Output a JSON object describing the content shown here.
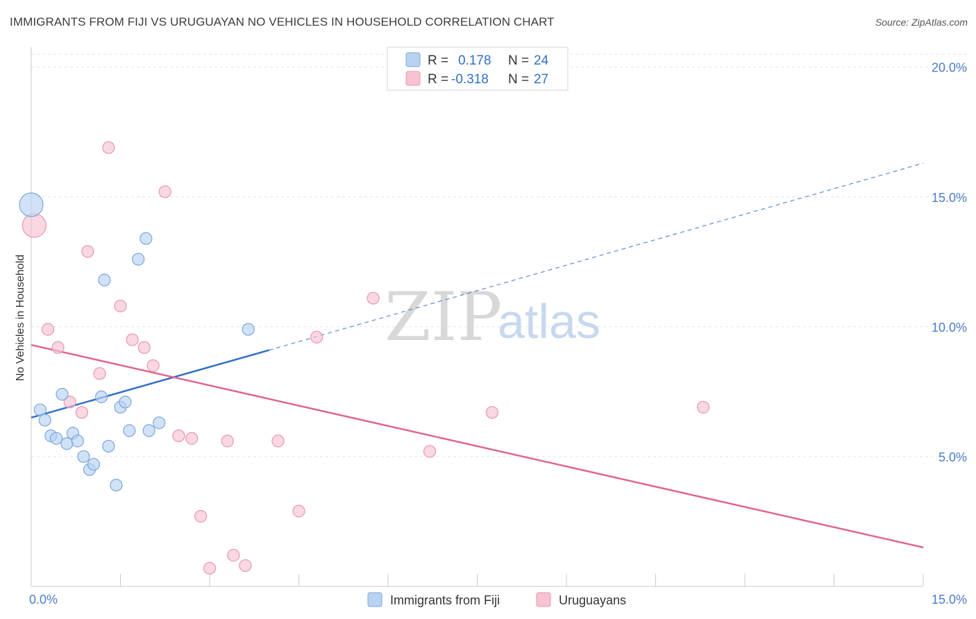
{
  "header": {
    "title": "IMMIGRANTS FROM FIJI VS URUGUAYAN NO VEHICLES IN HOUSEHOLD CORRELATION CHART",
    "source": "Source: ZipAtlas.com"
  },
  "watermark": {
    "zip": "ZIP",
    "atlas": "atlas"
  },
  "legend": {
    "rows": [
      {
        "r_label": "R =",
        "r_value": "0.178",
        "n_label": "N =",
        "n_value": "24"
      },
      {
        "r_label": "R =",
        "r_value": "-0.318",
        "n_label": "N =",
        "n_value": "27"
      }
    ]
  },
  "chart_data": {
    "type": "scatter",
    "title": "IMMIGRANTS FROM FIJI VS URUGUAYAN NO VEHICLES IN HOUSEHOLD CORRELATION CHART",
    "xlabel": "",
    "ylabel": "No Vehicles in Household",
    "xlim": [
      0,
      15
    ],
    "ylim": [
      0,
      20.5
    ],
    "x_tick_labels": [
      "0.0%",
      "15.0%"
    ],
    "y_ticks": [
      5,
      10,
      15,
      20
    ],
    "y_tick_labels": [
      "5.0%",
      "10.0%",
      "15.0%",
      "20.0%"
    ],
    "grid": true,
    "legend_position": "top-center",
    "colors": {
      "fiji_fill": "#b8d2f2",
      "fiji_stroke": "#7aa6dc",
      "fiji_line": "#2f6fc9",
      "uru_fill": "#f7c3d3",
      "uru_stroke": "#e994b0",
      "uru_line": "#e0648f"
    },
    "series": [
      {
        "name": "Immigrants from Fiji",
        "points": [
          {
            "x": 0.0,
            "y": 14.7,
            "large": true
          },
          {
            "x": 0.15,
            "y": 6.8
          },
          {
            "x": 0.23,
            "y": 6.4
          },
          {
            "x": 0.33,
            "y": 5.8
          },
          {
            "x": 0.42,
            "y": 5.7
          },
          {
            "x": 0.52,
            "y": 7.4
          },
          {
            "x": 0.6,
            "y": 5.5
          },
          {
            "x": 0.7,
            "y": 5.9
          },
          {
            "x": 0.78,
            "y": 5.6
          },
          {
            "x": 0.88,
            "y": 5.0
          },
          {
            "x": 0.98,
            "y": 4.5
          },
          {
            "x": 1.05,
            "y": 4.7
          },
          {
            "x": 1.18,
            "y": 7.3
          },
          {
            "x": 1.23,
            "y": 11.8
          },
          {
            "x": 1.3,
            "y": 5.4
          },
          {
            "x": 1.43,
            "y": 3.9
          },
          {
            "x": 1.5,
            "y": 6.9
          },
          {
            "x": 1.58,
            "y": 7.1
          },
          {
            "x": 1.65,
            "y": 6.0
          },
          {
            "x": 1.8,
            "y": 12.6
          },
          {
            "x": 1.93,
            "y": 13.4
          },
          {
            "x": 1.98,
            "y": 6.0
          },
          {
            "x": 2.15,
            "y": 6.3
          },
          {
            "x": 3.65,
            "y": 9.9
          }
        ],
        "trend": {
          "x0": 0,
          "y0": 6.5,
          "x1": 4.0,
          "y1": 9.1,
          "dash_to_x": 15,
          "dash_to_y": 16.3
        }
      },
      {
        "name": "Uruguayans",
        "points": [
          {
            "x": 0.05,
            "y": 13.9,
            "large": true
          },
          {
            "x": 0.28,
            "y": 9.9
          },
          {
            "x": 0.45,
            "y": 9.2
          },
          {
            "x": 0.65,
            "y": 7.1
          },
          {
            "x": 0.85,
            "y": 6.7
          },
          {
            "x": 0.95,
            "y": 12.9
          },
          {
            "x": 1.15,
            "y": 8.2
          },
          {
            "x": 1.3,
            "y": 16.9
          },
          {
            "x": 1.5,
            "y": 10.8
          },
          {
            "x": 1.7,
            "y": 9.5
          },
          {
            "x": 1.9,
            "y": 9.2
          },
          {
            "x": 2.05,
            "y": 8.5
          },
          {
            "x": 2.25,
            "y": 15.2
          },
          {
            "x": 2.48,
            "y": 5.8
          },
          {
            "x": 2.7,
            "y": 5.7
          },
          {
            "x": 2.85,
            "y": 2.7
          },
          {
            "x": 3.0,
            "y": 0.7
          },
          {
            "x": 3.3,
            "y": 5.6
          },
          {
            "x": 3.4,
            "y": 1.2
          },
          {
            "x": 3.6,
            "y": 0.8
          },
          {
            "x": 4.15,
            "y": 5.6
          },
          {
            "x": 4.5,
            "y": 2.9
          },
          {
            "x": 4.8,
            "y": 9.6
          },
          {
            "x": 5.75,
            "y": 11.1
          },
          {
            "x": 6.7,
            "y": 5.2
          },
          {
            "x": 7.75,
            "y": 6.7
          },
          {
            "x": 11.3,
            "y": 6.9
          }
        ],
        "trend": {
          "x0": 0,
          "y0": 9.3,
          "x1": 15,
          "y1": 1.5
        }
      }
    ]
  }
}
